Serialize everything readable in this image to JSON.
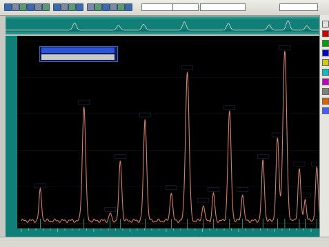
{
  "window": {
    "title": "",
    "accent": "#0f7f78",
    "plot_bg": "#000000",
    "trace_color": "#d4806a"
  },
  "toolbar": {
    "buttons": [
      "file-icon",
      "open-icon",
      "save-icon",
      "print-icon",
      "cut-icon",
      "copy-icon",
      "paste-icon",
      "undo-icon",
      "zoom-icon",
      "pan-icon",
      "cursor-icon",
      "peak-icon",
      "baseline-icon",
      "overlay-icon",
      "settings-icon",
      "help-icon"
    ],
    "combo1": "",
    "combo2": "",
    "combo3": "",
    "combo_right": ""
  },
  "legend": {
    "row1": "",
    "row2": ""
  },
  "left_axis_label": "",
  "status": {
    "left": "",
    "mid": "",
    "right": ""
  },
  "right_panel": {
    "swatches": [
      "#e0e0e0",
      "#d00000",
      "#00a000",
      "#0000d0",
      "#d0d000",
      "#00c0c0",
      "#c000c0",
      "#808080",
      "#e06000",
      "#4060ff"
    ]
  },
  "chart_data": {
    "type": "line",
    "title": "",
    "xlabel": "",
    "ylabel": "",
    "xlim": [
      0,
      100
    ],
    "ylim": [
      0,
      100
    ],
    "peaks": [
      {
        "x": 6.5,
        "h": 17,
        "label": ""
      },
      {
        "x": 21.5,
        "h": 63,
        "label": ""
      },
      {
        "x": 30.5,
        "h": 4,
        "label": ""
      },
      {
        "x": 34.0,
        "h": 33,
        "label": ""
      },
      {
        "x": 42.5,
        "h": 56,
        "label": ""
      },
      {
        "x": 51.5,
        "h": 16,
        "label": ""
      },
      {
        "x": 57.0,
        "h": 82,
        "label": ""
      },
      {
        "x": 62.5,
        "h": 9,
        "label": ""
      },
      {
        "x": 66.0,
        "h": 15,
        "label": ""
      },
      {
        "x": 71.5,
        "h": 60,
        "label": ""
      },
      {
        "x": 76.0,
        "h": 15,
        "label": ""
      },
      {
        "x": 83.0,
        "h": 33,
        "label": ""
      },
      {
        "x": 88.0,
        "h": 45,
        "label": ""
      },
      {
        "x": 90.5,
        "h": 93,
        "label": ""
      },
      {
        "x": 95.5,
        "h": 29,
        "label": ""
      },
      {
        "x": 97.5,
        "h": 12,
        "label": ""
      },
      {
        "x": 101.5,
        "h": 29,
        "label": ""
      }
    ],
    "overview_peaks": [
      {
        "x": 22,
        "h": 30
      },
      {
        "x": 36,
        "h": 20
      },
      {
        "x": 44,
        "h": 25
      },
      {
        "x": 57,
        "h": 35
      },
      {
        "x": 71,
        "h": 28
      },
      {
        "x": 84,
        "h": 22
      },
      {
        "x": 90,
        "h": 40
      },
      {
        "x": 96,
        "h": 18
      }
    ]
  }
}
